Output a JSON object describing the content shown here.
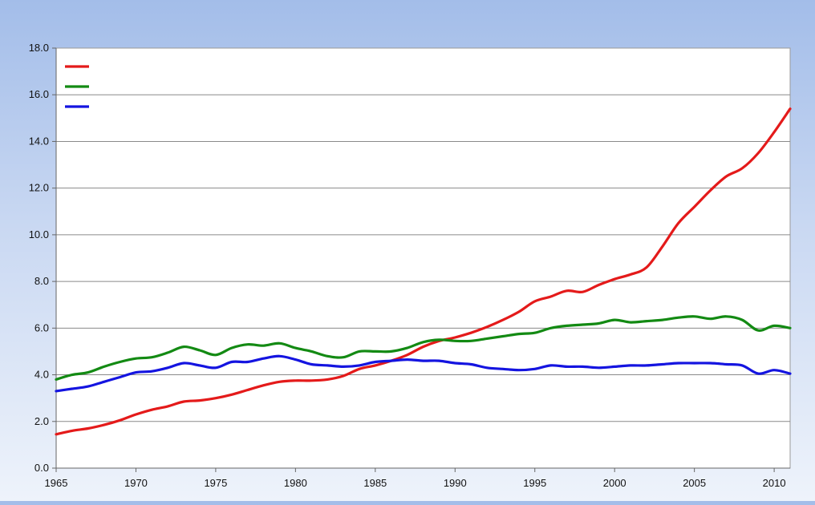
{
  "chart_data": {
    "type": "line",
    "title": "",
    "xlabel": "",
    "ylabel": "",
    "xlim": [
      1965,
      2011
    ],
    "ylim": [
      0,
      18
    ],
    "x_ticks": [
      "1965",
      "1970",
      "1975",
      "1980",
      "1985",
      "1990",
      "1995",
      "2000",
      "2005",
      "2010"
    ],
    "y_ticks": [
      "0.0",
      "2.0",
      "4.0",
      "6.0",
      "8.0",
      "10.0",
      "12.0",
      "14.0",
      "16.0",
      "18.0"
    ],
    "grid": "horizontal",
    "legend": "top-left",
    "x": [
      1965,
      1966,
      1967,
      1968,
      1969,
      1970,
      1971,
      1972,
      1973,
      1974,
      1975,
      1976,
      1977,
      1978,
      1979,
      1980,
      1981,
      1982,
      1983,
      1984,
      1985,
      1986,
      1987,
      1988,
      1989,
      1990,
      1991,
      1992,
      1993,
      1994,
      1995,
      1996,
      1997,
      1998,
      1999,
      2000,
      2001,
      2002,
      2003,
      2004,
      2005,
      2006,
      2007,
      2008,
      2009,
      2010,
      2011
    ],
    "series": [
      {
        "color": "#e41a1a",
        "values": [
          1.45,
          1.6,
          1.7,
          1.85,
          2.05,
          2.3,
          2.5,
          2.65,
          2.85,
          2.9,
          3.0,
          3.15,
          3.35,
          3.55,
          3.7,
          3.75,
          3.75,
          3.8,
          3.95,
          4.25,
          4.4,
          4.6,
          4.85,
          5.2,
          5.45,
          5.6,
          5.8,
          6.05,
          6.35,
          6.7,
          7.15,
          7.35,
          7.6,
          7.55,
          7.85,
          8.1,
          8.3,
          8.6,
          9.5,
          10.5,
          11.2,
          11.9,
          12.5,
          12.85,
          13.5,
          14.4,
          15.4
        ]
      },
      {
        "color": "#138a13",
        "values": [
          3.8,
          4.0,
          4.1,
          4.35,
          4.55,
          4.7,
          4.75,
          4.95,
          5.2,
          5.05,
          4.85,
          5.15,
          5.3,
          5.25,
          5.35,
          5.15,
          5.0,
          4.8,
          4.75,
          5.0,
          5.0,
          5.0,
          5.15,
          5.4,
          5.5,
          5.45,
          5.45,
          5.55,
          5.65,
          5.75,
          5.8,
          6.0,
          6.1,
          6.15,
          6.2,
          6.35,
          6.25,
          6.3,
          6.35,
          6.45,
          6.5,
          6.4,
          6.5,
          6.35,
          5.9,
          6.1,
          6.0
        ]
      },
      {
        "color": "#1414e0",
        "values": [
          3.3,
          3.4,
          3.5,
          3.7,
          3.9,
          4.1,
          4.15,
          4.3,
          4.5,
          4.4,
          4.3,
          4.55,
          4.55,
          4.7,
          4.8,
          4.65,
          4.45,
          4.4,
          4.35,
          4.4,
          4.55,
          4.6,
          4.65,
          4.6,
          4.6,
          4.5,
          4.45,
          4.3,
          4.25,
          4.2,
          4.25,
          4.4,
          4.35,
          4.35,
          4.3,
          4.35,
          4.4,
          4.4,
          4.45,
          4.5,
          4.5,
          4.5,
          4.45,
          4.4,
          4.05,
          4.2,
          4.05
        ]
      }
    ]
  }
}
